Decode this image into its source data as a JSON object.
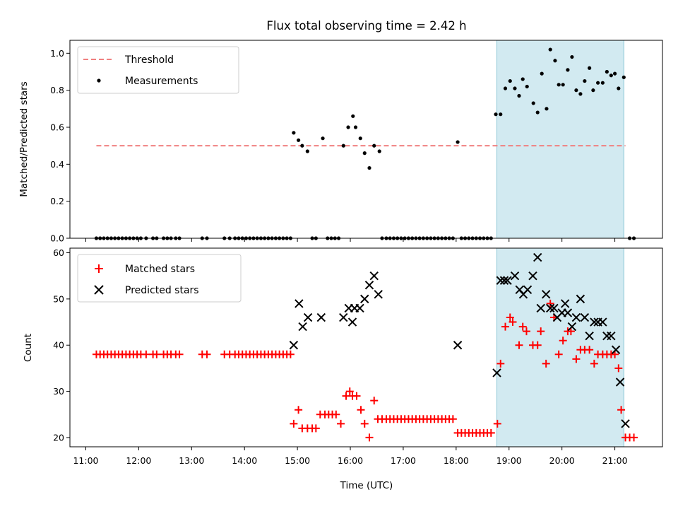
{
  "chart_data": {
    "type": "scatter",
    "title": "Flux total observing time = 2.42 h",
    "xlabel": "Time (UTC)",
    "xlim": [
      10.7,
      21.9
    ],
    "x_ticks": [
      11,
      12,
      13,
      14,
      15,
      16,
      17,
      18,
      19,
      20,
      21
    ],
    "x_tick_labels": [
      "11:00",
      "12:00",
      "13:00",
      "14:00",
      "15:00",
      "16:00",
      "17:00",
      "18:00",
      "19:00",
      "20:00",
      "21:00"
    ],
    "colors": {
      "threshold": "#f08080",
      "measurements": "#000000",
      "matched": "#ff0000",
      "predicted": "#000000",
      "highlight": "#add8e6"
    },
    "top_panel": {
      "ylabel": "Matched/Predicted stars",
      "ylim": [
        0,
        1.07
      ],
      "y_ticks": [
        0.0,
        0.2,
        0.4,
        0.6,
        0.8,
        1.0
      ],
      "y_tick_labels": [
        "0.0",
        "0.2",
        "0.4",
        "0.6",
        "0.8",
        "1.0"
      ],
      "threshold": {
        "name": "Threshold",
        "value": 0.5,
        "x_range": [
          11.2,
          21.2
        ]
      },
      "measurements_label": "Measurements",
      "highlight_span": [
        18.77,
        21.17
      ],
      "measurements": [
        [
          11.2,
          0
        ],
        [
          11.27,
          0
        ],
        [
          11.34,
          0
        ],
        [
          11.41,
          0
        ],
        [
          11.48,
          0
        ],
        [
          11.55,
          0
        ],
        [
          11.62,
          0
        ],
        [
          11.69,
          0
        ],
        [
          11.76,
          0
        ],
        [
          11.83,
          0
        ],
        [
          11.9,
          0
        ],
        [
          11.97,
          0
        ],
        [
          12.04,
          0
        ],
        [
          12.14,
          0
        ],
        [
          12.27,
          0
        ],
        [
          12.34,
          0
        ],
        [
          12.47,
          0
        ],
        [
          12.54,
          0
        ],
        [
          12.61,
          0
        ],
        [
          12.7,
          0
        ],
        [
          12.77,
          0
        ],
        [
          13.2,
          0
        ],
        [
          13.29,
          0
        ],
        [
          13.62,
          0
        ],
        [
          13.72,
          0
        ],
        [
          13.82,
          0
        ],
        [
          13.89,
          0
        ],
        [
          13.96,
          0
        ],
        [
          14.03,
          0
        ],
        [
          14.1,
          0
        ],
        [
          14.17,
          0
        ],
        [
          14.24,
          0
        ],
        [
          14.31,
          0
        ],
        [
          14.38,
          0
        ],
        [
          14.45,
          0
        ],
        [
          14.52,
          0
        ],
        [
          14.59,
          0
        ],
        [
          14.66,
          0
        ],
        [
          14.73,
          0
        ],
        [
          14.8,
          0
        ],
        [
          14.87,
          0
        ],
        [
          14.93,
          0.57
        ],
        [
          15.02,
          0.53
        ],
        [
          15.09,
          0.5
        ],
        [
          15.19,
          0.47
        ],
        [
          15.28,
          0
        ],
        [
          15.35,
          0
        ],
        [
          15.48,
          0.54
        ],
        [
          15.57,
          0
        ],
        [
          15.64,
          0
        ],
        [
          15.71,
          0
        ],
        [
          15.78,
          0
        ],
        [
          15.87,
          0.5
        ],
        [
          15.96,
          0.6
        ],
        [
          16.05,
          0.66
        ],
        [
          16.1,
          0.6
        ],
        [
          16.19,
          0.54
        ],
        [
          16.27,
          0.46
        ],
        [
          16.36,
          0.38
        ],
        [
          16.45,
          0.5
        ],
        [
          16.55,
          0.47
        ],
        [
          16.6,
          0
        ],
        [
          16.68,
          0
        ],
        [
          16.75,
          0
        ],
        [
          16.82,
          0
        ],
        [
          16.89,
          0
        ],
        [
          16.96,
          0
        ],
        [
          17.03,
          0
        ],
        [
          17.1,
          0
        ],
        [
          17.17,
          0
        ],
        [
          17.24,
          0
        ],
        [
          17.31,
          0
        ],
        [
          17.38,
          0
        ],
        [
          17.45,
          0
        ],
        [
          17.52,
          0
        ],
        [
          17.59,
          0
        ],
        [
          17.66,
          0
        ],
        [
          17.73,
          0
        ],
        [
          17.8,
          0
        ],
        [
          17.87,
          0
        ],
        [
          17.94,
          0
        ],
        [
          18.03,
          0.52
        ],
        [
          18.1,
          0
        ],
        [
          18.17,
          0
        ],
        [
          18.24,
          0
        ],
        [
          18.31,
          0
        ],
        [
          18.38,
          0
        ],
        [
          18.45,
          0
        ],
        [
          18.52,
          0
        ],
        [
          18.59,
          0
        ],
        [
          18.66,
          0
        ],
        [
          18.75,
          0.67
        ],
        [
          18.84,
          0.67
        ],
        [
          18.93,
          0.81
        ],
        [
          19.02,
          0.85
        ],
        [
          19.11,
          0.81
        ],
        [
          19.19,
          0.77
        ],
        [
          19.26,
          0.86
        ],
        [
          19.34,
          0.82
        ],
        [
          19.46,
          0.73
        ],
        [
          19.54,
          0.68
        ],
        [
          19.62,
          0.89
        ],
        [
          19.71,
          0.7
        ],
        [
          19.78,
          1.02
        ],
        [
          19.87,
          0.96
        ],
        [
          19.94,
          0.83
        ],
        [
          20.02,
          0.83
        ],
        [
          20.11,
          0.91
        ],
        [
          20.19,
          0.98
        ],
        [
          20.27,
          0.8
        ],
        [
          20.35,
          0.78
        ],
        [
          20.43,
          0.85
        ],
        [
          20.52,
          0.92
        ],
        [
          20.59,
          0.8
        ],
        [
          20.68,
          0.84
        ],
        [
          20.77,
          0.84
        ],
        [
          20.85,
          0.9
        ],
        [
          20.93,
          0.88
        ],
        [
          21.0,
          0.89
        ],
        [
          21.07,
          0.81
        ],
        [
          21.17,
          0.87
        ],
        [
          21.28,
          0
        ],
        [
          21.36,
          0
        ]
      ]
    },
    "bottom_panel": {
      "ylabel": "Count",
      "ylim": [
        18,
        61
      ],
      "y_ticks": [
        20,
        30,
        40,
        50,
        60
      ],
      "y_tick_labels": [
        "20",
        "30",
        "40",
        "50",
        "60"
      ],
      "highlight_span": [
        18.77,
        21.17
      ],
      "series": [
        {
          "name": "Matched stars",
          "marker": "plus",
          "points": [
            [
              11.2,
              38
            ],
            [
              11.27,
              38
            ],
            [
              11.34,
              38
            ],
            [
              11.41,
              38
            ],
            [
              11.48,
              38
            ],
            [
              11.55,
              38
            ],
            [
              11.62,
              38
            ],
            [
              11.69,
              38
            ],
            [
              11.76,
              38
            ],
            [
              11.83,
              38
            ],
            [
              11.9,
              38
            ],
            [
              11.97,
              38
            ],
            [
              12.04,
              38
            ],
            [
              12.14,
              38
            ],
            [
              12.27,
              38
            ],
            [
              12.34,
              38
            ],
            [
              12.47,
              38
            ],
            [
              12.54,
              38
            ],
            [
              12.61,
              38
            ],
            [
              12.7,
              38
            ],
            [
              12.77,
              38
            ],
            [
              13.2,
              38
            ],
            [
              13.29,
              38
            ],
            [
              13.62,
              38
            ],
            [
              13.72,
              38
            ],
            [
              13.82,
              38
            ],
            [
              13.89,
              38
            ],
            [
              13.96,
              38
            ],
            [
              14.03,
              38
            ],
            [
              14.1,
              38
            ],
            [
              14.17,
              38
            ],
            [
              14.24,
              38
            ],
            [
              14.31,
              38
            ],
            [
              14.38,
              38
            ],
            [
              14.45,
              38
            ],
            [
              14.52,
              38
            ],
            [
              14.59,
              38
            ],
            [
              14.66,
              38
            ],
            [
              14.73,
              38
            ],
            [
              14.8,
              38
            ],
            [
              14.87,
              38
            ],
            [
              14.93,
              23
            ],
            [
              15.02,
              26
            ],
            [
              15.09,
              22
            ],
            [
              15.19,
              22
            ],
            [
              15.28,
              22
            ],
            [
              15.35,
              22
            ],
            [
              15.43,
              25
            ],
            [
              15.52,
              25
            ],
            [
              15.59,
              25
            ],
            [
              15.66,
              25
            ],
            [
              15.73,
              25
            ],
            [
              15.82,
              23
            ],
            [
              15.92,
              29
            ],
            [
              15.99,
              30
            ],
            [
              16.04,
              29
            ],
            [
              16.12,
              29
            ],
            [
              16.2,
              26
            ],
            [
              16.27,
              23
            ],
            [
              16.36,
              20
            ],
            [
              16.45,
              28
            ],
            [
              16.52,
              24
            ],
            [
              16.6,
              24
            ],
            [
              16.68,
              24
            ],
            [
              16.75,
              24
            ],
            [
              16.82,
              24
            ],
            [
              16.89,
              24
            ],
            [
              16.96,
              24
            ],
            [
              17.03,
              24
            ],
            [
              17.1,
              24
            ],
            [
              17.17,
              24
            ],
            [
              17.24,
              24
            ],
            [
              17.31,
              24
            ],
            [
              17.38,
              24
            ],
            [
              17.45,
              24
            ],
            [
              17.52,
              24
            ],
            [
              17.59,
              24
            ],
            [
              17.66,
              24
            ],
            [
              17.73,
              24
            ],
            [
              17.8,
              24
            ],
            [
              17.87,
              24
            ],
            [
              17.94,
              24
            ],
            [
              18.03,
              21
            ],
            [
              18.1,
              21
            ],
            [
              18.17,
              21
            ],
            [
              18.24,
              21
            ],
            [
              18.31,
              21
            ],
            [
              18.38,
              21
            ],
            [
              18.45,
              21
            ],
            [
              18.52,
              21
            ],
            [
              18.59,
              21
            ],
            [
              18.66,
              21
            ],
            [
              18.78,
              23
            ],
            [
              18.84,
              36
            ],
            [
              18.93,
              44
            ],
            [
              19.02,
              46
            ],
            [
              19.07,
              45
            ],
            [
              19.19,
              40
            ],
            [
              19.26,
              44
            ],
            [
              19.33,
              43
            ],
            [
              19.45,
              40
            ],
            [
              19.54,
              40
            ],
            [
              19.6,
              43
            ],
            [
              19.7,
              36
            ],
            [
              19.78,
              49
            ],
            [
              19.85,
              46
            ],
            [
              19.94,
              38
            ],
            [
              20.02,
              41
            ],
            [
              20.11,
              43
            ],
            [
              20.17,
              43
            ],
            [
              20.27,
              37
            ],
            [
              20.35,
              39
            ],
            [
              20.43,
              39
            ],
            [
              20.52,
              39
            ],
            [
              20.61,
              36
            ],
            [
              20.68,
              38
            ],
            [
              20.77,
              38
            ],
            [
              20.85,
              38
            ],
            [
              20.93,
              38
            ],
            [
              21.0,
              38
            ],
            [
              21.07,
              35
            ],
            [
              21.12,
              26
            ],
            [
              21.2,
              20
            ],
            [
              21.28,
              20
            ],
            [
              21.36,
              20
            ]
          ]
        },
        {
          "name": "Predicted stars",
          "marker": "x",
          "points": [
            [
              14.93,
              40
            ],
            [
              15.03,
              49
            ],
            [
              15.1,
              44
            ],
            [
              15.2,
              46
            ],
            [
              15.45,
              46
            ],
            [
              15.87,
              46
            ],
            [
              15.97,
              48
            ],
            [
              16.04,
              45
            ],
            [
              16.08,
              48
            ],
            [
              16.18,
              48
            ],
            [
              16.27,
              50
            ],
            [
              16.36,
              53
            ],
            [
              16.45,
              55
            ],
            [
              16.53,
              51
            ],
            [
              18.03,
              40
            ],
            [
              18.77,
              34
            ],
            [
              18.84,
              54
            ],
            [
              18.91,
              54
            ],
            [
              18.97,
              54
            ],
            [
              19.11,
              55
            ],
            [
              19.2,
              52
            ],
            [
              19.27,
              51
            ],
            [
              19.35,
              52
            ],
            [
              19.45,
              55
            ],
            [
              19.54,
              59
            ],
            [
              19.6,
              48
            ],
            [
              19.7,
              51
            ],
            [
              19.78,
              48
            ],
            [
              19.85,
              48
            ],
            [
              19.91,
              46
            ],
            [
              20.0,
              47
            ],
            [
              20.06,
              49
            ],
            [
              20.11,
              47
            ],
            [
              20.19,
              44
            ],
            [
              20.27,
              46
            ],
            [
              20.35,
              50
            ],
            [
              20.43,
              46
            ],
            [
              20.52,
              42
            ],
            [
              20.61,
              45
            ],
            [
              20.68,
              45
            ],
            [
              20.77,
              45
            ],
            [
              20.85,
              42
            ],
            [
              20.93,
              42
            ],
            [
              21.02,
              39
            ],
            [
              21.1,
              32
            ],
            [
              21.2,
              23
            ]
          ]
        }
      ]
    }
  }
}
